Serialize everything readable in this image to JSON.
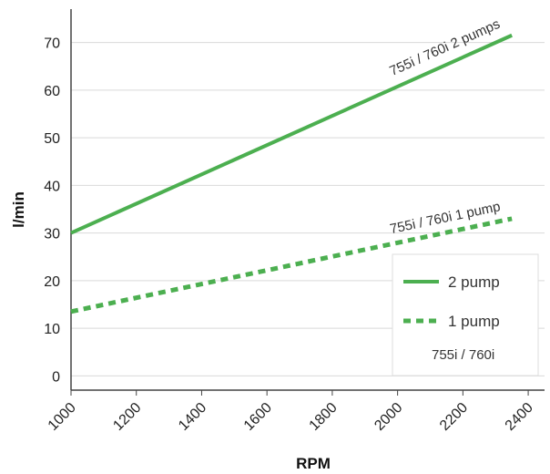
{
  "chart_data": {
    "type": "line",
    "xlabel": "RPM",
    "ylabel": "l/min",
    "xlim": [
      1000,
      2450
    ],
    "ylim": [
      -3,
      77
    ],
    "x_ticks": [
      1000,
      1200,
      1400,
      1600,
      1800,
      2000,
      2200,
      2400
    ],
    "x_tick_labels": [
      "1000",
      "1200",
      "1400",
      "1600",
      "1800",
      "2000",
      "2200",
      "2400"
    ],
    "y_ticks": [
      0,
      10,
      20,
      30,
      40,
      50,
      60,
      70
    ],
    "y_tick_labels": [
      "0",
      "10",
      "20",
      "30",
      "40",
      "50",
      "60",
      "70"
    ],
    "grid": "horizontal",
    "legend_position": "bottom-right",
    "series": [
      {
        "name": "2 pump",
        "style": "solid",
        "color": "#4caf50",
        "x": [
          1000,
          2350
        ],
        "values": [
          30,
          71.5
        ],
        "annotation": "755i / 760i 2 pumps"
      },
      {
        "name": "1 pump",
        "style": "dashed",
        "color": "#4caf50",
        "x": [
          1000,
          2350
        ],
        "values": [
          13.5,
          33
        ],
        "annotation": "755i / 760i 1 pump"
      }
    ],
    "legend_caption": "755i / 760i"
  }
}
